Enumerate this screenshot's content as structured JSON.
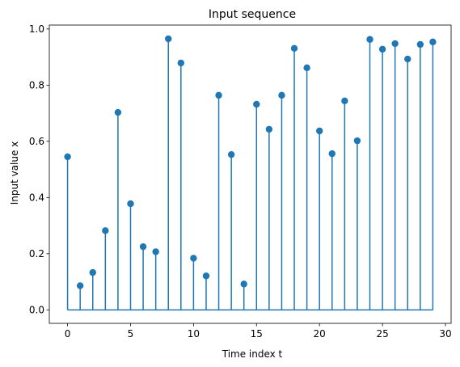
{
  "chart_data": {
    "type": "stem",
    "title": "Input sequence",
    "x_label": "Time index t",
    "y_label": "Input value x",
    "x": [
      0,
      1,
      2,
      3,
      4,
      5,
      6,
      7,
      8,
      9,
      10,
      11,
      12,
      13,
      14,
      15,
      16,
      17,
      18,
      19,
      20,
      21,
      22,
      23,
      24,
      25,
      26,
      27,
      28,
      29
    ],
    "values": [
      0.545,
      0.086,
      0.133,
      0.282,
      0.703,
      0.378,
      0.225,
      0.207,
      0.965,
      0.879,
      0.184,
      0.121,
      0.764,
      0.553,
      0.092,
      0.732,
      0.643,
      0.764,
      0.931,
      0.862,
      0.637,
      0.556,
      0.744,
      0.602,
      0.963,
      0.928,
      0.948,
      0.893,
      0.945,
      0.954
    ],
    "color": "#1f77b4",
    "xlim": [
      -1.45,
      30.45
    ],
    "xticks": [
      0,
      5,
      10,
      15,
      20,
      25,
      30
    ],
    "ylim": [
      -0.048,
      1.014
    ],
    "yticks": [
      {
        "value": 0,
        "label": "0.0"
      },
      {
        "value": 0.2,
        "label": "0.2"
      },
      {
        "value": 0.4,
        "label": "0.4"
      },
      {
        "value": 0.6,
        "label": "0.6"
      },
      {
        "value": 0.8,
        "label": "0.8"
      },
      {
        "value": 1,
        "label": "1.0"
      }
    ],
    "grid": false
  }
}
